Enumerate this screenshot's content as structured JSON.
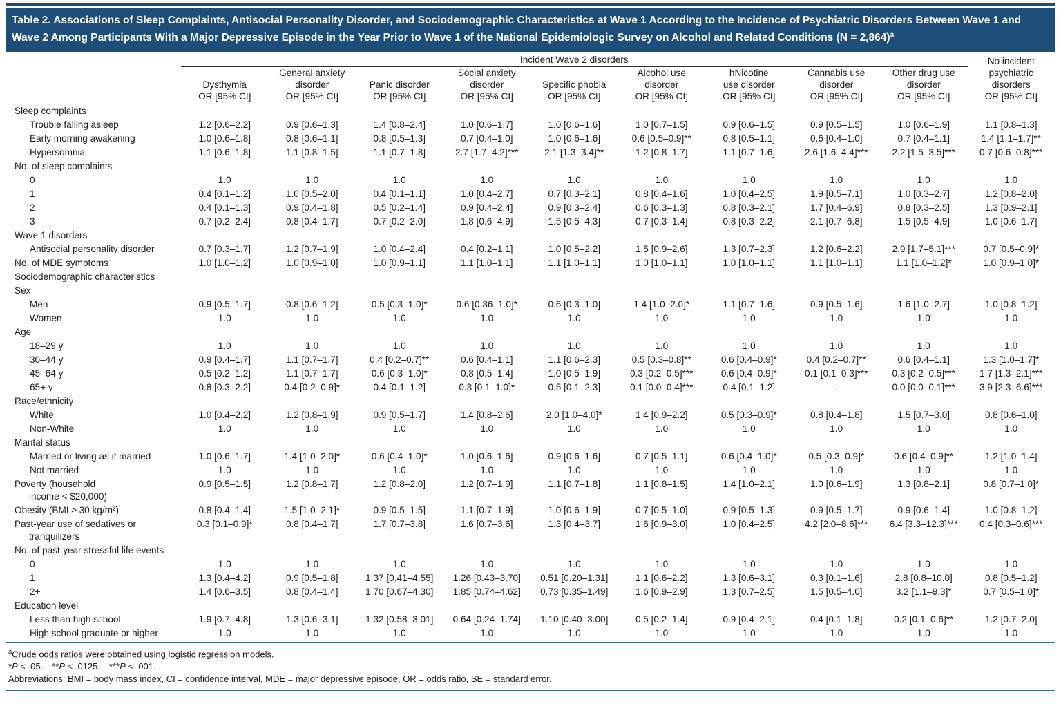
{
  "header": {
    "title": "Table 2. Associations of Sleep Complaints, Antisocial Personality Disorder, and Sociodemographic Characteristics at Wave 1 According to the Incidence of Psychiatric Disorders Between Wave 1 and Wave 2 Among Participants With a Major Depressive Episode in the Year Prior to Wave 1 of the National Epidemiologic Survey on Alcohol and Related Conditions (N = 2,864)",
    "title_sup": "a"
  },
  "colors": {
    "title_bar_bg": "#1d4e79",
    "rule_blue": "#41719c",
    "rule_dark": "#2e2e2e"
  },
  "table": {
    "spanner": "Incident Wave 2 disorders",
    "columns": [
      {
        "lines": [
          "Dysthymia"
        ],
        "or": "OR [95% CI]"
      },
      {
        "lines": [
          "General anxiety",
          "disorder"
        ],
        "or": "OR [95% CI]"
      },
      {
        "lines": [
          "Panic disorder"
        ],
        "or": "OR [95% CI]"
      },
      {
        "lines": [
          "Social anxiety",
          "disorder"
        ],
        "or": "OR [95% CI]"
      },
      {
        "lines": [
          "Specific phobia"
        ],
        "or": "OR [95% CI]"
      },
      {
        "lines": [
          "Alcohol use",
          "disorder"
        ],
        "or": "OR [95% CI]"
      },
      {
        "lines": [
          "hNicotine",
          "use disorder"
        ],
        "or": "OR [95% CI]"
      },
      {
        "lines": [
          "Cannabis use",
          "disorder"
        ],
        "or": "OR [95% CI]"
      },
      {
        "lines": [
          "Other drug use",
          "disorder"
        ],
        "or": "OR [95% CI]"
      }
    ],
    "last_column": {
      "lines": [
        "No incident",
        "psychiatric",
        "disorders"
      ],
      "or": "OR [95% CI]"
    },
    "rows": [
      {
        "type": "section",
        "label": "Sleep complaints"
      },
      {
        "type": "data",
        "indent": 1,
        "label": "Trouble falling asleep",
        "values": [
          "1.2 [0.6–2.2]",
          "0.9 [0.6–1.3]",
          "1.4 [0.8–2.4]",
          "1.0 [0.6–1.7]",
          "1.0 [0.6–1.6]",
          "1.0 [0.7–1.5]",
          "0.9 [0.6–1.5]",
          "0.9 [0.5–1.5]",
          "1.0 [0.6–1.9]",
          "1.1 [0.8–1.3]"
        ]
      },
      {
        "type": "data",
        "indent": 1,
        "label": "Early morning awakening",
        "values": [
          "1.0 [0.6–1.8]",
          "0.8 [0.6–1.1]",
          "0.8 [0.5–1.3]",
          "0.7 [0.4–1.0]",
          "1.0 [0.6–1.6]",
          "0.6 [0.5–0.9]**",
          "0.8 [0.5–1.1]",
          "0.6 [0.4–1.0]",
          "0.7 [0.4–1.1]",
          "1.4 [1.1–1.7]**"
        ]
      },
      {
        "type": "data",
        "indent": 1,
        "label": "Hypersomnia",
        "values": [
          "1.1 [0.6–1.8]",
          "1.1 [0.8–1.5]",
          "1.1 [0.7–1.8]",
          "2.7 [1.7–4.2]***",
          "2.1 [1.3–3.4]**",
          "1.2 [0.8–1.7]",
          "1.1 [0.7–1.6]",
          "2.6 [1.6–4.4]***",
          "2.2 [1.5–3.5]***",
          "0.7 [0.6–0.8]***"
        ]
      },
      {
        "type": "section",
        "label": "No. of sleep complaints"
      },
      {
        "type": "data",
        "indent": 1,
        "label": "0",
        "values": [
          "1.0",
          "1.0",
          "1.0",
          "1.0",
          "1.0",
          "1.0",
          "1.0",
          "1.0",
          "1.0",
          "1.0"
        ]
      },
      {
        "type": "data",
        "indent": 1,
        "label": "1",
        "values": [
          "0.4 [0.1–1.2]",
          "1.0 [0.5–2.0]",
          "0.4 [0.1–1.1]",
          "1.0 [0.4–2.7]",
          "0.7 [0.3–2.1]",
          "0.8 [0.4–1.6]",
          "1.0 [0.4–2.5]",
          "1.9 [0.5–7.1]",
          "1.0 [0.3–2.7]",
          "1.2 [0.8–2.0]"
        ]
      },
      {
        "type": "data",
        "indent": 1,
        "label": "2",
        "values": [
          "0.4 [0.1–1.3]",
          "0.9 [0.4–1.8]",
          "0.5 [0.2–1.4]",
          "0.9 [0.4–2.4]",
          "0.9 [0.3–2.4]",
          "0.6 [0.3–1.3]",
          "0.8 [0.3–2.1]",
          "1.7 [0.4–6.9]",
          "0.8 [0.3–2.5]",
          "1.3 [0.9–2.1]"
        ]
      },
      {
        "type": "data",
        "indent": 1,
        "label": "3",
        "values": [
          "0.7 [0.2–2.4]",
          "0.8 [0.4–1.7]",
          "0.7 [0.2–2.0]",
          "1.8 [0.6–4.9]",
          "1.5 [0.5–4.3]",
          "0.7 [0.3–1.4]",
          "0.8 [0.3–2.2]",
          "2.1 [0.7–6.8]",
          "1.5 [0.5–4.9]",
          "1.0 [0.6–1.7]"
        ]
      },
      {
        "type": "section",
        "label": "Wave 1 disorders"
      },
      {
        "type": "data",
        "indent": 1,
        "label": "Antisocial personality disorder",
        "values": [
          "0.7 [0.3–1.7]",
          "1.2 [0.7–1.9]",
          "1.0 [0.4–2.4]",
          "0.4 [0.2–1.1]",
          "1.0 [0.5–2.2]",
          "1.5 [0.9–2.6]",
          "1.3 [0.7–2.3]",
          "1.2 [0.6–2.2]",
          "2.9 [1.7–5.1]***",
          "0.7 [0.5–0.9]*"
        ]
      },
      {
        "type": "data",
        "indent": 0,
        "label": "No. of MDE symptoms",
        "values": [
          "1.0 [1.0–1.2]",
          "1.0 [0.9–1.0]",
          "1.0 [0.9–1.1]",
          "1.1 [1.0–1.1]",
          "1.1 [1.0–1.1]",
          "1.0 [1.0–1.1]",
          "1.0 [1.0–1.1]",
          "1.1 [1.0–1.1]",
          "1.1 [1.0–1.2]*",
          "1.0 [0.9–1.0]*"
        ]
      },
      {
        "type": "section",
        "label": "Sociodemographic characteristics"
      },
      {
        "type": "section",
        "label": "Sex"
      },
      {
        "type": "data",
        "indent": 1,
        "label": "Men",
        "values": [
          "0.9 [0.5–1.7]",
          "0.8 [0.6–1.2]",
          "0.5 [0.3–1.0]*",
          "0.6 [0.36–1.0]*",
          "0.6 [0.3–1.0]",
          "1.4 [1.0–2.0]*",
          "1.1 [0.7–1.6]",
          "0.9 [0.5–1.6]",
          "1.6 [1.0–2.7]",
          "1.0 [0.8–1.2]"
        ]
      },
      {
        "type": "data",
        "indent": 1,
        "label": "Women",
        "values": [
          "1.0",
          "1.0",
          "1.0",
          "1.0",
          "1.0",
          "1.0",
          "1.0",
          "1.0",
          "1.0",
          "1.0"
        ]
      },
      {
        "type": "section",
        "label": "Age"
      },
      {
        "type": "data",
        "indent": 1,
        "label": "18–29 y",
        "values": [
          "1.0",
          "1.0",
          "1.0",
          "1.0",
          "1.0",
          "1.0",
          "1.0",
          "1.0",
          "1.0",
          "1.0"
        ]
      },
      {
        "type": "data",
        "indent": 1,
        "label": "30–44 y",
        "values": [
          "0.9 [0.4–1.7]",
          "1.1 [0.7–1.7]",
          "0.4 [0.2–0.7]**",
          "0.6 [0.4–1.1]",
          "1.1 [0.6–2.3]",
          "0.5 [0.3–0.8]**",
          "0.6 [0.4–0.9]*",
          "0.4 [0.2–0.7]**",
          "0.6 [0.4–1.1]",
          "1.3 [1.0–1.7]*"
        ]
      },
      {
        "type": "data",
        "indent": 1,
        "label": "45–64 y",
        "values": [
          "0.5 [0.2–1.2]",
          "1.1 [0.7–1.7]",
          "0.6 [0.3–1.0]*",
          "0.8 [0.5–1.4]",
          "1.0 [0.5–1.9]",
          "0.3 [0.2–0.5]***",
          "0.6 [0.4–0.9]*",
          "0.1 [0.1–0.3]***",
          "0.3 [0.2–0.5]***",
          "1.7 [1.3–2.1]***"
        ]
      },
      {
        "type": "data",
        "indent": 1,
        "label": "65+ y",
        "values": [
          "0.8 [0.3–2.2]",
          "0.4 [0.2–0.9]*",
          "0.4 [0.1–1.2]",
          "0.3 [0.1–1.0]*",
          "0.5 [0.1–2.3]",
          "0.1 [0.0–0.4]***",
          "0.4 [0.1–1.2]",
          ".",
          "0.0 [0.0–0.1]***",
          "3.9 [2.3–6.6]***"
        ]
      },
      {
        "type": "section",
        "label": "Race/ethnicity"
      },
      {
        "type": "data",
        "indent": 1,
        "label": "White",
        "values": [
          "1.0 [0.4–2.2]",
          "1.2 [0.8–1.9]",
          "0.9 [0.5–1.7]",
          "1.4 [0.8–2.6]",
          "2.0 [1.0–4.0]*",
          "1.4 [0.9–2.2]",
          "0.5 [0.3–0.9]*",
          "0.8 [0.4–1.8]",
          "1.5 [0.7–3.0]",
          "0.8 [0.6–1.0]"
        ]
      },
      {
        "type": "data",
        "indent": 1,
        "label": "Non-White",
        "values": [
          "1.0",
          "1.0",
          "1.0",
          "1.0",
          "1.0",
          "1.0",
          "1.0",
          "1.0",
          "1.0",
          "1.0"
        ]
      },
      {
        "type": "section",
        "label": "Marital status"
      },
      {
        "type": "data",
        "indent": 1,
        "label": "Married or living as if married",
        "values": [
          "1.0 [0.6–1.7]",
          "1.4 [1.0–2.0]*",
          "0.6 [0.4–1.0]*",
          "1.0 [0.6–1.6]",
          "0.9 [0.6–1.6]",
          "0.7 [0.5–1.1]",
          "0.6 [0.4–1.0]*",
          "0.5 [0.3–0.9]*",
          "0.6 [0.4–0.9]**",
          "1.2 [1.0–1.4]"
        ]
      },
      {
        "type": "data",
        "indent": 1,
        "label": "Not married",
        "values": [
          "1.0",
          "1.0",
          "1.0",
          "1.0",
          "1.0",
          "1.0",
          "1.0",
          "1.0",
          "1.0",
          "1.0"
        ]
      },
      {
        "type": "data",
        "indent": 0,
        "label": "Poverty (household\nincome < $20,000)",
        "values": [
          "0.9 [0.5–1.5]",
          "1.2 [0.8–1.7]",
          "1.2 [0.8–2.0]",
          "1.2 [0.7–1.9]",
          "1.1 [0.7–1.8]",
          "1.1 [0.8–1.5]",
          "1.4 [1.0–2.1]",
          "1.0 [0.6–1.9]",
          "1.3 [0.8–2.1]",
          "0.8 [0.7–1.0]*"
        ]
      },
      {
        "type": "data",
        "indent": 0,
        "label": "Obesity (BMI ≥ 30 kg/m²)",
        "values": [
          "0.8 [0.4–1.4]",
          "1.5 [1.0–2.1]*",
          "0.9 [0.5–1.5]",
          "1.1 [0.7–1.9]",
          "1.0 [0.6–1.9]",
          "0.7 [0.5–1.0]",
          "0.9 [0.5–1.3]",
          "0.9 [0.5–1.7]",
          "0.9 [0.6–1.4]",
          "1.0 [0.8–1.2]"
        ]
      },
      {
        "type": "data",
        "indent": 0,
        "label": "Past-year use of sedatives or\ntranquilizers",
        "values": [
          "0.3 [0.1–0.9]*",
          "0.8 [0.4–1.7]",
          "1.7 [0.7–3.8]",
          "1.6 [0.7–3.6]",
          "1.3 [0.4–3.7]",
          "1.6 [0.9–3.0]",
          "1.0 [0.4–2.5]",
          "4.2 [2.0–8.6]***",
          "6.4 [3.3–12.3]***",
          "0.4 [0.3–0.6]***"
        ]
      },
      {
        "type": "section",
        "label": "No. of past-year stressful life events"
      },
      {
        "type": "data",
        "indent": 1,
        "label": "0",
        "values": [
          "1.0",
          "1.0",
          "1.0",
          "1.0",
          "1.0",
          "1.0",
          "1.0",
          "1.0",
          "1.0",
          "1.0"
        ]
      },
      {
        "type": "data",
        "indent": 1,
        "label": "1",
        "values": [
          "1.3 [0.4–4.2]",
          "0.9 [0.5–1.8]",
          "1.37 [0.41–4.55]",
          "1.26 [0.43–3.70]",
          "0.51 [0.20–1.31]",
          "1.1 [0.6–2.2]",
          "1.3 [0.6–3.1]",
          "0.3 [0.1–1.6]",
          "2.8 [0.8–10.0]",
          "0.8 [0.5–1.2]"
        ]
      },
      {
        "type": "data",
        "indent": 1,
        "label": "2+",
        "values": [
          "1.4 [0.6–3.5]",
          "0.8 [0.4–1.4]",
          "1.70 [0.67–4.30]",
          "1.85 [0.74–4.62]",
          "0.73 [0.35–1.49]",
          "1.6 [0.9–2.9]",
          "1.3 [0.7–2.5]",
          "1.5 [0.5–4.0]",
          "3.2 [1.1–9.3]*",
          "0.7 [0.5–1.0]*"
        ]
      },
      {
        "type": "section",
        "label": "Education level"
      },
      {
        "type": "data",
        "indent": 1,
        "label": "Less than high school",
        "values": [
          "1.9 [0.7–4.8]",
          "1.3 [0.6–3.1]",
          "1.32 [0.58–3.01]",
          "0.64 [0.24–1.74]",
          "1.10 [0.40–3.00]",
          "0.5 [0.2–1.4]",
          "0.9 [0.4–2.1]",
          "0.4 [0.1–1.8]",
          "0.2 [0.1–0.6]**",
          "1.2 [0.7–2.0]"
        ]
      },
      {
        "type": "data",
        "indent": 1,
        "label": "High school graduate or higher",
        "values": [
          "1.0",
          "1.0",
          "1.0",
          "1.0",
          "1.0",
          "1.0",
          "1.0",
          "1.0",
          "1.0",
          "1.0"
        ]
      }
    ]
  },
  "footnotes": {
    "a_sup": "a",
    "a_text": "Crude odds ratios were obtained using logistic regression models.",
    "significance": [
      {
        "stars": "*",
        "p": "P",
        "rest": " < .05."
      },
      {
        "stars": "**",
        "p": "P",
        "rest": " < .0125."
      },
      {
        "stars": "***",
        "p": "P",
        "rest": " < .001."
      }
    ],
    "abbreviations": "Abbreviations: BMI = body mass index, CI = confidence interval, MDE = major depressive episode, OR = odds ratio, SE = standard error."
  }
}
